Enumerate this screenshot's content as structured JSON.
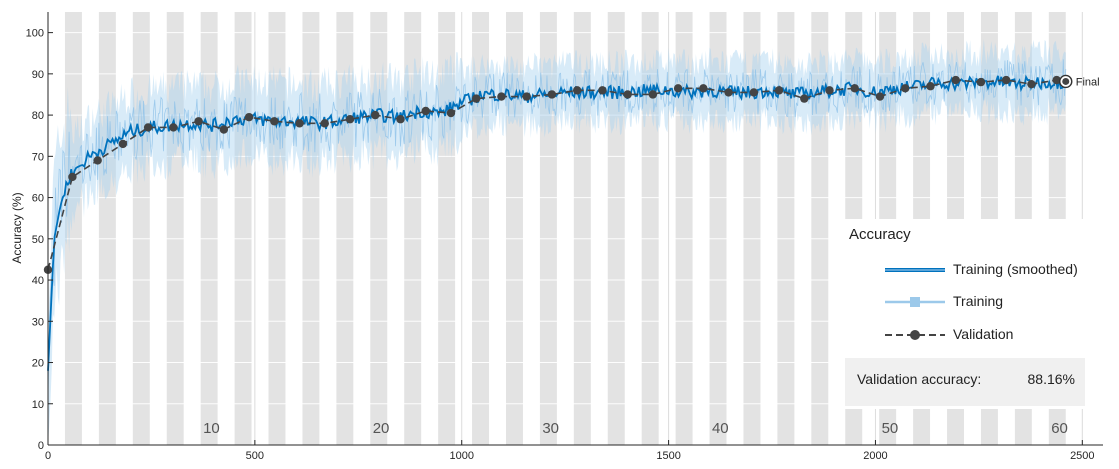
{
  "chart_data": {
    "type": "line",
    "ylabel": "Accuracy (%)",
    "xlabel": "",
    "xlim": [
      0,
      2550
    ],
    "ylim": [
      0,
      105
    ],
    "xticks": [
      0,
      500,
      1000,
      1500,
      2000,
      2500
    ],
    "yticks": [
      0,
      10,
      20,
      30,
      40,
      50,
      60,
      70,
      80,
      90,
      100
    ],
    "epoch_labels": [
      {
        "x": 395,
        "label": "10"
      },
      {
        "x": 805,
        "label": "20"
      },
      {
        "x": 1215,
        "label": "30"
      },
      {
        "x": 1625,
        "label": "40"
      },
      {
        "x": 2035,
        "label": "50"
      },
      {
        "x": 2445,
        "label": "60"
      }
    ],
    "epoch_bands": {
      "iterations_per_epoch": 41,
      "first_shaded_start": 41,
      "end": 2460
    },
    "grid": true,
    "series": [
      {
        "name": "Training (smoothed)",
        "color": "#0072bd",
        "x": [
          0,
          15,
          30,
          50,
          70,
          100,
          150,
          200,
          250,
          300,
          350,
          400,
          450,
          500,
          550,
          600,
          650,
          700,
          750,
          800,
          850,
          900,
          950,
          1000,
          1050,
          1100,
          1150,
          1200,
          1250,
          1300,
          1350,
          1400,
          1450,
          1500,
          1550,
          1600,
          1650,
          1700,
          1750,
          1800,
          1850,
          1900,
          1950,
          2000,
          2050,
          2100,
          2150,
          2200,
          2250,
          2300,
          2350,
          2400,
          2460
        ],
        "values": [
          18,
          50,
          58,
          65,
          67,
          70,
          73,
          76,
          77,
          77.5,
          78,
          77.5,
          79,
          79,
          78.5,
          78.5,
          78,
          78.5,
          79.5,
          80,
          79.5,
          81,
          80.5,
          83,
          85,
          85,
          84.5,
          85,
          85.5,
          85.5,
          85.5,
          85.5,
          86,
          86,
          85.5,
          86,
          85.5,
          85.5,
          86,
          85,
          85.5,
          86,
          86.5,
          85.5,
          86.5,
          87,
          88,
          87.5,
          88,
          88,
          87.5,
          88,
          88
        ]
      },
      {
        "name": "Training",
        "color": "#9cc9ea",
        "x": [],
        "values": []
      },
      {
        "name": "Validation",
        "color": "#444444",
        "marker": "circle",
        "x": [
          0,
          59,
          120,
          181,
          242,
          303,
          364,
          425,
          486,
          547,
          608,
          669,
          730,
          791,
          852,
          913,
          974,
          1035,
          1096,
          1157,
          1218,
          1279,
          1340,
          1401,
          1462,
          1523,
          1584,
          1645,
          1706,
          1767,
          1828,
          1889,
          1950,
          2011,
          2072,
          2133,
          2194,
          2255,
          2316,
          2377,
          2438,
          2460
        ],
        "values": [
          42.5,
          65,
          69,
          73,
          77,
          77,
          78.5,
          76.5,
          79.5,
          78.5,
          78,
          78,
          79,
          80,
          79,
          81,
          80.5,
          84,
          84.5,
          84.5,
          85,
          86,
          86,
          85,
          85,
          86.5,
          86.5,
          85.5,
          85.5,
          86,
          84,
          86,
          86.5,
          84.5,
          86.5,
          87,
          88.5,
          88,
          88.5,
          87.5,
          88.5,
          88.16
        ]
      }
    ],
    "annotation": {
      "x": 2460,
      "y": 88.16,
      "label": "Final"
    },
    "legend": {
      "title": "Accuracy",
      "placement": "bottom-right",
      "entries": [
        "Training (smoothed)",
        "Training",
        "Validation"
      ]
    },
    "summary": {
      "label": "Validation accuracy:",
      "value": "88.16%"
    }
  }
}
